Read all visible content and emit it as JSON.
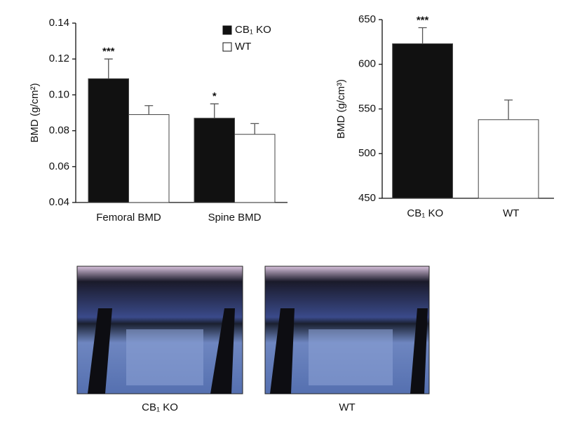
{
  "chart_data": [
    {
      "type": "bar",
      "y_label": "BMD (g/cm²)",
      "categories": [
        "Femoral BMD",
        "Spine BMD"
      ],
      "series": [
        {
          "name": "CB₁ KO",
          "color": "#111111",
          "values": [
            0.109,
            0.087
          ],
          "errors": [
            0.011,
            0.008
          ],
          "annotations": [
            "***",
            "*"
          ]
        },
        {
          "name": "WT",
          "color": "#ffffff",
          "values": [
            0.089,
            0.078
          ],
          "errors": [
            0.005,
            0.006
          ]
        }
      ],
      "ylim": [
        0.04,
        0.14
      ],
      "yticks": [
        0.04,
        0.06,
        0.08,
        {
          "value": 0.1,
          "label": "0.10"
        },
        0.12,
        0.14
      ],
      "legend": "top-right"
    },
    {
      "type": "bar",
      "y_label": "BMD (g/cm³)",
      "categories": [
        "CB₁ KO",
        "WT"
      ],
      "values": [
        623,
        538
      ],
      "errors": [
        18,
        22
      ],
      "colors": [
        "#111111",
        "#ffffff"
      ],
      "annotations": [
        "***",
        null
      ],
      "ylim": [
        450,
        650
      ],
      "yticks": [
        450,
        500,
        550,
        600,
        650
      ]
    }
  ],
  "images": [
    {
      "label": "CB₁ KO"
    },
    {
      "label": "WT"
    }
  ]
}
